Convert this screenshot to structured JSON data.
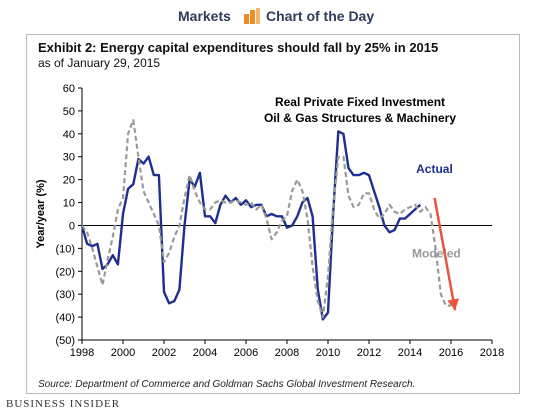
{
  "header": {
    "markets": "Markets",
    "chart_of_the_day": "Chart of the Day",
    "accent_color": "#f08a24"
  },
  "title": "Exhibit 2: Energy capital expenditures should fall by 25% in 2015",
  "subtitle": "as of January 29, 2015",
  "source": "Source: Department of Commerce and Goldman Sachs Global Investment Research.",
  "brand": "BUSINESS INSIDER",
  "chart_data": {
    "type": "line",
    "title": "Real Private Fixed Investment",
    "subtitle": "Oil & Gas Structures & Machinery",
    "xlabel": "",
    "ylabel": "Year/year (%)",
    "xlim": [
      1998,
      2018
    ],
    "ylim": [
      -50,
      60
    ],
    "x_ticks": [
      1998,
      2000,
      2002,
      2004,
      2006,
      2008,
      2010,
      2012,
      2014,
      2016,
      2018
    ],
    "x_tick_labels": [
      "1998",
      "2000",
      "2002",
      "2004",
      "2006",
      "2008",
      "2010",
      "2012",
      "2014",
      "2016",
      "2018"
    ],
    "y_ticks": [
      60,
      50,
      40,
      30,
      20,
      10,
      0,
      -10,
      -20,
      -30,
      -40,
      -50
    ],
    "y_tick_labels": [
      "60",
      "50",
      "40",
      "30",
      "20",
      "10",
      "0",
      "(10)",
      "(20)",
      "(30)",
      "(40)",
      "(50)"
    ],
    "grid": false,
    "series": [
      {
        "name": "Actual",
        "color": "#1f2f8f",
        "style": "solid",
        "x": [
          1998.0,
          1998.25,
          1998.5,
          1998.75,
          1999.0,
          1999.25,
          1999.5,
          1999.75,
          2000.0,
          2000.25,
          2000.5,
          2000.75,
          2001.0,
          2001.25,
          2001.5,
          2001.75,
          2002.0,
          2002.25,
          2002.5,
          2002.75,
          2003.0,
          2003.25,
          2003.5,
          2003.75,
          2004.0,
          2004.25,
          2004.5,
          2004.75,
          2005.0,
          2005.25,
          2005.5,
          2005.75,
          2006.0,
          2006.25,
          2006.5,
          2006.75,
          2007.0,
          2007.25,
          2007.5,
          2007.75,
          2008.0,
          2008.25,
          2008.5,
          2008.75,
          2009.0,
          2009.25,
          2009.5,
          2009.75,
          2010.0,
          2010.25,
          2010.5,
          2010.75,
          2011.0,
          2011.25,
          2011.5,
          2011.75,
          2012.0,
          2012.25,
          2012.5,
          2012.75,
          2013.0,
          2013.25,
          2013.5,
          2013.75,
          2014.0,
          2014.25,
          2014.5
        ],
        "y": [
          0,
          -8,
          -9,
          -8,
          -19,
          -17,
          -13,
          -17,
          5,
          16,
          18,
          29,
          27,
          30,
          22,
          22,
          -29,
          -34,
          -33,
          -28,
          0,
          20,
          17,
          23,
          4,
          4,
          1,
          9,
          13,
          10,
          12,
          9,
          11,
          8,
          9,
          9,
          4,
          5,
          4,
          4,
          -1,
          0,
          4,
          10,
          12,
          4,
          -28,
          -41,
          -38,
          5,
          41,
          40,
          25,
          22,
          22,
          23,
          22,
          15,
          8,
          0,
          -3,
          -2,
          3,
          3,
          5,
          7,
          9
        ]
      },
      {
        "name": "Modeled",
        "color": "#9a9a9a",
        "style": "dashed",
        "x": [
          1998.0,
          1998.25,
          1998.5,
          1998.75,
          1999.0,
          1999.25,
          1999.5,
          1999.75,
          2000.0,
          2000.25,
          2000.5,
          2000.75,
          2001.0,
          2001.25,
          2001.5,
          2001.75,
          2002.0,
          2002.25,
          2002.5,
          2002.75,
          2003.0,
          2003.25,
          2003.5,
          2003.75,
          2004.0,
          2004.25,
          2004.5,
          2004.75,
          2005.0,
          2005.25,
          2005.5,
          2005.75,
          2006.0,
          2006.25,
          2006.5,
          2006.75,
          2007.0,
          2007.25,
          2007.5,
          2007.75,
          2008.0,
          2008.25,
          2008.5,
          2008.75,
          2009.0,
          2009.25,
          2009.5,
          2009.75,
          2010.0,
          2010.25,
          2010.5,
          2010.75,
          2011.0,
          2011.25,
          2011.5,
          2011.75,
          2012.0,
          2012.25,
          2012.5,
          2012.75,
          2013.0,
          2013.25,
          2013.5,
          2013.75,
          2014.0,
          2014.25,
          2014.5,
          2014.75,
          2015.0,
          2015.25,
          2015.5,
          2015.75,
          2016.0
        ],
        "y": [
          0,
          -3,
          -10,
          -18,
          -26,
          -15,
          -5,
          7,
          12,
          40,
          46,
          30,
          15,
          10,
          5,
          0,
          -16,
          -12,
          -5,
          0,
          12,
          22,
          15,
          10,
          7,
          7,
          10,
          11,
          10,
          10,
          11,
          10,
          9,
          10,
          7,
          9,
          3,
          -6,
          -3,
          2,
          4,
          15,
          20,
          15,
          3,
          -18,
          -33,
          -40,
          -22,
          8,
          30,
          30,
          13,
          8,
          9,
          14,
          14,
          7,
          3,
          5,
          9,
          6,
          5,
          7,
          8,
          9,
          6,
          8,
          5,
          -10,
          -30,
          -35,
          -35
        ]
      }
    ],
    "annotations": [
      {
        "text": "Actual",
        "x": 2014.3,
        "y": 23,
        "color": "#1f2f8f"
      },
      {
        "text": "Modeled",
        "x": 2014.1,
        "y": -14,
        "color": "#9a9a9a"
      }
    ],
    "arrow": {
      "color": "#e8553e",
      "x_start": 2015.2,
      "y_start": 12,
      "x_end": 2016.2,
      "y_end": -37
    }
  }
}
